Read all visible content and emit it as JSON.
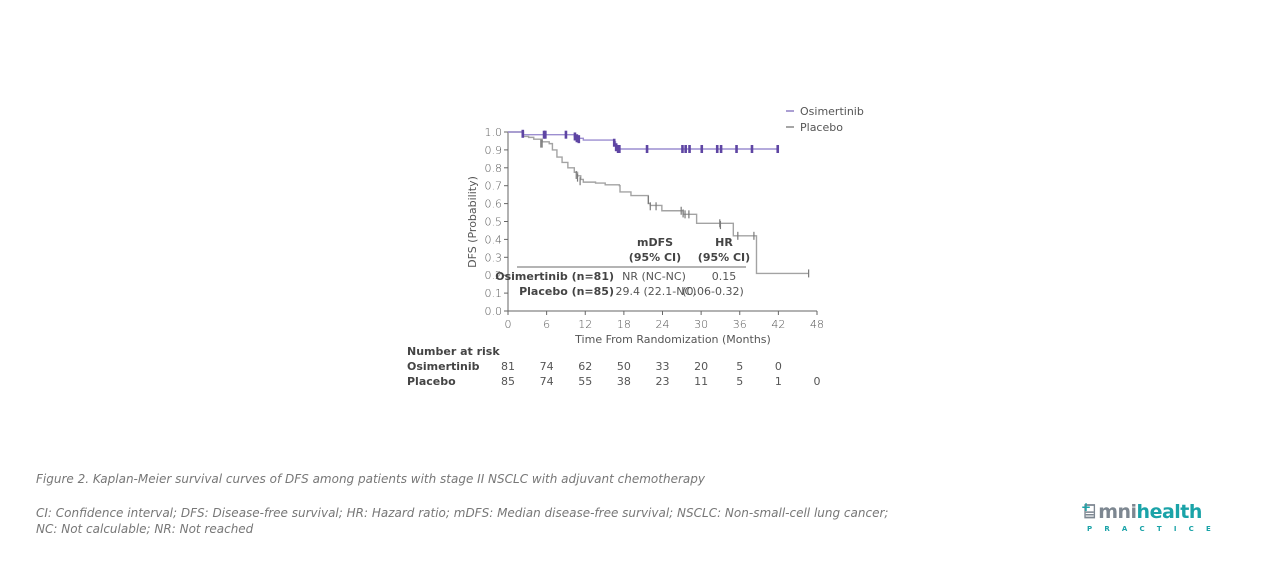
{
  "chart_data": {
    "type": "line",
    "subtype": "kaplan-meier",
    "title": "",
    "xlabel": "Time From Randomization (Months)",
    "ylabel": "DFS (Probability)",
    "xlim": [
      0,
      48
    ],
    "ylim": [
      0.0,
      1.0
    ],
    "x_ticks": [
      "0",
      "6",
      "12",
      "18",
      "24",
      "30",
      "36",
      "42",
      "48"
    ],
    "y_ticks": [
      "0.0",
      "0.1",
      "0.2",
      "0.3",
      "0.4",
      "0.5",
      "0.6",
      "0.7",
      "0.8",
      "0.9",
      "1.0"
    ],
    "grid": false,
    "legend": {
      "position": "top-right",
      "entries": [
        {
          "name": "Osimertinib",
          "color": "#8f7fc4"
        },
        {
          "name": "Placebo",
          "color": "#999999"
        }
      ]
    },
    "series": [
      {
        "name": "Osimertinib",
        "line_color": "#9c8ed0",
        "censor_color": "#5e45a3",
        "steps": [
          [
            0,
            1.0
          ],
          [
            2.2,
            1.0
          ],
          [
            2.3,
            0.985
          ],
          [
            9.1,
            0.985
          ],
          [
            10.3,
            0.975
          ],
          [
            10.6,
            0.965
          ],
          [
            11.7,
            0.955
          ],
          [
            16.5,
            0.945
          ],
          [
            16.7,
            0.925
          ],
          [
            17.0,
            0.905
          ],
          [
            41.9,
            0.905
          ]
        ],
        "censors": [
          [
            2.3,
            0.99
          ],
          [
            5.6,
            0.985
          ],
          [
            5.8,
            0.985
          ],
          [
            9.0,
            0.985
          ],
          [
            10.4,
            0.975
          ],
          [
            10.7,
            0.965
          ],
          [
            11.0,
            0.96
          ],
          [
            16.5,
            0.94
          ],
          [
            16.8,
            0.915
          ],
          [
            17.1,
            0.905
          ],
          [
            17.3,
            0.905
          ],
          [
            21.6,
            0.905
          ],
          [
            27.1,
            0.905
          ],
          [
            27.6,
            0.905
          ],
          [
            28.2,
            0.905
          ],
          [
            30.1,
            0.905
          ],
          [
            32.5,
            0.905
          ],
          [
            33.1,
            0.905
          ],
          [
            35.5,
            0.905
          ],
          [
            37.9,
            0.905
          ],
          [
            41.9,
            0.905
          ]
        ]
      },
      {
        "name": "Placebo",
        "line_color": "#a3a3a3",
        "censor_color": "#7a7a7a",
        "steps": [
          [
            0,
            1.0
          ],
          [
            2.3,
            1.0
          ],
          [
            2.4,
            0.975
          ],
          [
            3.2,
            0.97
          ],
          [
            4.0,
            0.96
          ],
          [
            5.3,
            0.945
          ],
          [
            6.4,
            0.935
          ],
          [
            6.9,
            0.9
          ],
          [
            7.6,
            0.86
          ],
          [
            8.4,
            0.83
          ],
          [
            9.3,
            0.8
          ],
          [
            10.3,
            0.775
          ],
          [
            10.8,
            0.755
          ],
          [
            11.3,
            0.735
          ],
          [
            11.7,
            0.72
          ],
          [
            13.6,
            0.715
          ],
          [
            15.1,
            0.705
          ],
          [
            17.3,
            0.7
          ],
          [
            17.4,
            0.665
          ],
          [
            19.1,
            0.645
          ],
          [
            21.8,
            0.6
          ],
          [
            22.1,
            0.59
          ],
          [
            23.9,
            0.56
          ],
          [
            26.9,
            0.56
          ],
          [
            27.2,
            0.54
          ],
          [
            28.7,
            0.54
          ],
          [
            29.3,
            0.49
          ],
          [
            34.8,
            0.49
          ],
          [
            35.0,
            0.42
          ],
          [
            38.4,
            0.42
          ],
          [
            38.6,
            0.21
          ],
          [
            46.7,
            0.21
          ]
        ],
        "censors": [
          [
            5.1,
            0.935
          ],
          [
            5.3,
            0.935
          ],
          [
            10.6,
            0.76
          ],
          [
            10.8,
            0.745
          ],
          [
            11.2,
            0.725
          ],
          [
            21.8,
            0.62
          ],
          [
            22.1,
            0.585
          ],
          [
            23.0,
            0.585
          ],
          [
            26.9,
            0.56
          ],
          [
            27.2,
            0.545
          ],
          [
            27.5,
            0.54
          ],
          [
            28.1,
            0.54
          ],
          [
            32.9,
            0.49
          ],
          [
            33.0,
            0.48
          ],
          [
            35.7,
            0.42
          ],
          [
            38.2,
            0.42
          ],
          [
            46.7,
            0.21
          ]
        ]
      }
    ],
    "table": {
      "headers": [
        [
          "mDFS",
          "(95% CI)"
        ],
        [
          "HR",
          "(95% CI)"
        ]
      ],
      "rows": [
        {
          "label": "Osimertinib (n=81)",
          "mdfs": "NR (NC-NC)",
          "hr": "0.15"
        },
        {
          "label": "Placebo (n=85)",
          "mdfs": "29.4 (22.1-NC)",
          "hr": "(0.06-0.32)"
        }
      ]
    },
    "number_at_risk": {
      "title": "Number at risk",
      "x": [
        0,
        6,
        12,
        18,
        24,
        30,
        36,
        42,
        48
      ],
      "rows": [
        {
          "name": "Osimertinib",
          "values": [
            "81",
            "74",
            "62",
            "50",
            "33",
            "20",
            "5",
            "0"
          ]
        },
        {
          "name": "Placebo",
          "values": [
            "85",
            "74",
            "55",
            "38",
            "23",
            "11",
            "5",
            "1",
            "0"
          ]
        }
      ]
    }
  },
  "caption": {
    "figure": "Figure 2. Kaplan-Meier survival curves of DFS among patients with stage II NSCLC with adjuvant chemotherapy",
    "abbrev_line1": "CI: Confidence interval; DFS: Disease-free survival; HR: Hazard ratio; mDFS: Median disease-free survival; NSCLC: Non-small-cell lung cancer;",
    "abbrev_line2": "NC: Not calculable; NR: Not reached"
  },
  "logo": {
    "omni": " mni",
    "health": "health",
    "practice": "PRACTICE"
  }
}
